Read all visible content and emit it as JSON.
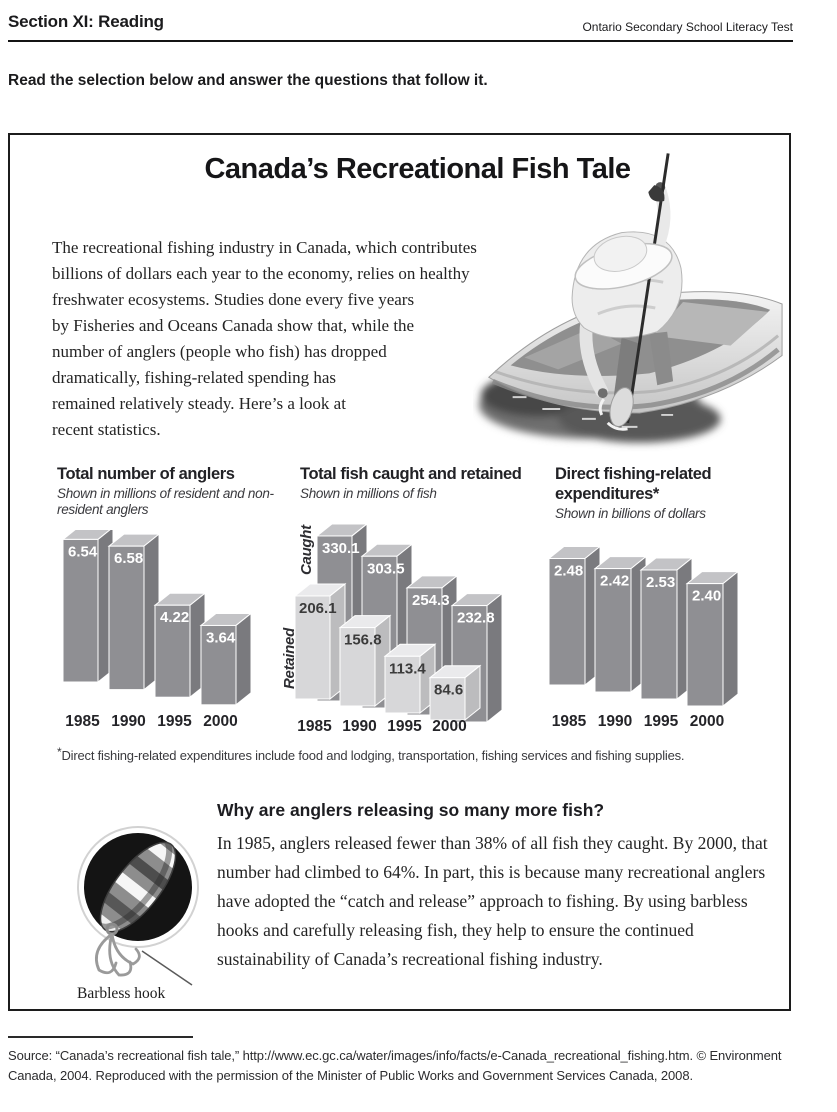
{
  "header": {
    "section_title": "Section XI: Reading",
    "test_name": "Ontario Secondary School Literacy Test",
    "instruction": "Read the selection below and answer the questions that follow it."
  },
  "article": {
    "title": "Canada’s Recreational Fish Tale",
    "intro_lines": [
      "The recreational fishing industry in Canada, which contributes",
      "billions of dollars each year to the economy, relies on healthy",
      "freshwater ecosystems. Studies done every five years",
      "by Fisheries and Oceans Canada show that, while the",
      "number of anglers (people who fish) has dropped",
      "dramatically, fishing-related spending has",
      "remained relatively steady. Here’s a look at",
      "recent statistics."
    ],
    "footnote": {
      "marker": "*",
      "text": "Direct fishing-related expenditures include food and lodging, transportation, fishing services and fishing supplies."
    },
    "question_heading": "Why are anglers releasing so many more fish?",
    "question_body": "In 1985, anglers released fewer than 38% of all fish they caught. By 2000, that number had climbed to 64%. In part, this is because many recreational anglers have adopted the “catch and release” approach to fishing. By using barbless hooks and carefully releasing fish, they help to ensure the continued sustainability of Canada’s recreational fishing industry.",
    "lure_caption": "Barbless hook"
  },
  "chart_data": [
    {
      "type": "bar",
      "title": "Total number of anglers",
      "subtitle": "Shown in millions of resident and non-resident anglers",
      "categories": [
        "1985",
        "1990",
        "1995",
        "2000"
      ],
      "values": [
        6.54,
        6.58,
        4.22,
        3.64
      ],
      "unit": "millions of anglers",
      "style": "3d-cascade",
      "value_labels_shown": true
    },
    {
      "type": "bar",
      "title": "Total fish caught and retained",
      "subtitle": "Shown in millions of fish",
      "categories": [
        "1985",
        "1990",
        "1995",
        "2000"
      ],
      "series": [
        {
          "name": "Caught",
          "values": [
            330.1,
            303.5,
            254.3,
            232.8
          ]
        },
        {
          "name": "Retained",
          "values": [
            206.1,
            156.8,
            113.4,
            84.6
          ]
        }
      ],
      "unit": "millions of fish",
      "style": "3d-cascade-grouped",
      "value_labels_shown": true
    },
    {
      "type": "bar",
      "title": "Direct fishing-related expenditures*",
      "subtitle": "Shown in billions of dollars",
      "categories": [
        "1985",
        "1990",
        "1995",
        "2000"
      ],
      "values": [
        2.48,
        2.42,
        2.53,
        2.4
      ],
      "unit": "billions of dollars",
      "style": "3d-cascade",
      "value_labels_shown": true
    }
  ],
  "colors": {
    "bar_dark_front": "#8f8f93",
    "bar_dark_top": "#c3c3c6",
    "bar_dark_side": "#7a7a7e",
    "bar_light_front": "#d7d7d9",
    "bar_light_top": "#eaeaec",
    "bar_light_side": "#bcbcbe",
    "value_label_light": "#ffffff",
    "value_label_dark": "#3b3b3b",
    "year_label": "#242428"
  },
  "source": "Source: “Canada’s recreational fish tale,” http://www.ec.gc.ca/water/images/info/facts/e-Canada_recreational_fishing.htm. © Environment Canada, 2004. Reproduced with the permission of the Minister of Public Works and Government Services Canada, 2008."
}
